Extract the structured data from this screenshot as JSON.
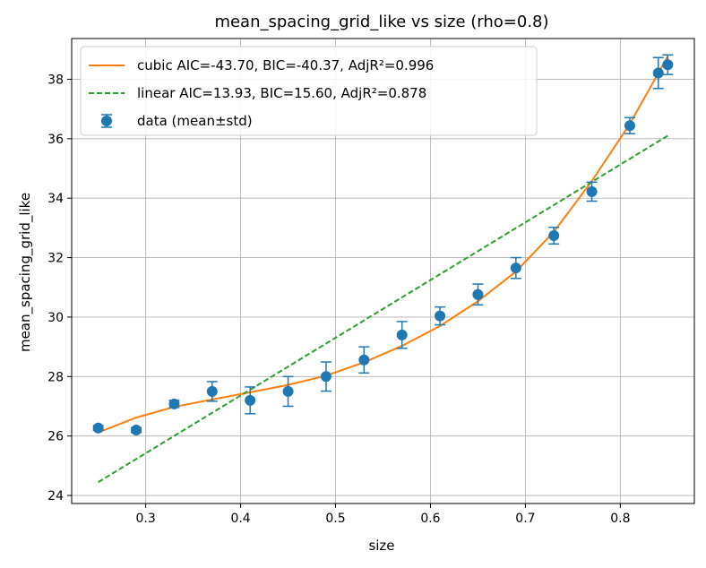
{
  "chart_data": {
    "type": "scatter",
    "title": "mean_spacing_grid_like vs size (rho=0.8)",
    "xlabel": "size",
    "ylabel": "mean_spacing_grid_like",
    "xlim": [
      0.222,
      0.878
    ],
    "ylim": [
      23.73,
      39.37
    ],
    "xticks": [
      0.3,
      0.4,
      0.5,
      0.6,
      0.7,
      0.8
    ],
    "xtick_labels": [
      "0.3",
      "0.4",
      "0.5",
      "0.6",
      "0.7",
      "0.8"
    ],
    "yticks": [
      24,
      26,
      28,
      30,
      32,
      34,
      36,
      38
    ],
    "ytick_labels": [
      "24",
      "26",
      "28",
      "30",
      "32",
      "34",
      "36",
      "38"
    ],
    "grid": true,
    "legend_position": "top-left",
    "series": [
      {
        "name": "cubic  AIC=-43.70, BIC=-40.37, AdjR²=0.996",
        "kind": "line",
        "style": "solid",
        "color": "#ff7f0e",
        "x": [
          0.25,
          0.29,
          0.33,
          0.37,
          0.41,
          0.45,
          0.49,
          0.53,
          0.57,
          0.61,
          0.65,
          0.69,
          0.73,
          0.77,
          0.81,
          0.85
        ],
        "y": [
          26.12,
          26.62,
          26.98,
          27.23,
          27.47,
          27.72,
          28.03,
          28.48,
          29.03,
          29.7,
          30.53,
          31.53,
          32.87,
          34.58,
          36.5,
          38.77
        ]
      },
      {
        "name": "linear AIC=13.93, BIC=15.60, AdjR²=0.878",
        "kind": "line",
        "style": "dashed",
        "color": "#2ca02c",
        "x": [
          0.25,
          0.85
        ],
        "y": [
          24.45,
          36.1
        ]
      },
      {
        "name": "data (mean±std)",
        "kind": "errorbar",
        "color": "#1f77b4",
        "x": [
          0.25,
          0.29,
          0.33,
          0.37,
          0.41,
          0.45,
          0.49,
          0.53,
          0.57,
          0.61,
          0.65,
          0.69,
          0.73,
          0.77,
          0.81,
          0.84,
          0.85
        ],
        "y": [
          26.27,
          26.2,
          27.08,
          27.5,
          27.2,
          27.5,
          28.0,
          28.56,
          29.4,
          30.04,
          30.76,
          31.65,
          32.74,
          34.22,
          36.44,
          38.21,
          38.49
        ],
        "err": [
          0.08,
          0.08,
          0.12,
          0.33,
          0.45,
          0.5,
          0.49,
          0.44,
          0.45,
          0.3,
          0.35,
          0.35,
          0.28,
          0.32,
          0.27,
          0.52,
          0.33
        ]
      }
    ]
  }
}
